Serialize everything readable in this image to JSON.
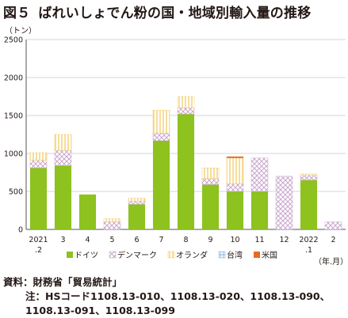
{
  "title": {
    "figure_number": "図５",
    "text": "ばれいしょでん粉の国・地域別輸入量の推移"
  },
  "source": "資料：財務省「貿易統計」",
  "note": {
    "label": "注：",
    "text": "HSコード1108.13-010、1108.13-020、1108.13-090、1108.13-091、1108.13-099"
  },
  "colors": {
    "germany": "#8dc21f",
    "denmark": "#c9a6cc",
    "netherlands": "#f0c75a",
    "taiwan": "#8ab4d8",
    "usa": "#e86b22"
  },
  "chart_data": {
    "type": "bar",
    "stacked": true,
    "y_unit_label": "（トン）",
    "x_unit_label": "（年.月）",
    "ylim": [
      0,
      2500
    ],
    "yticks": [
      "0",
      "500",
      "1000",
      "1500",
      "2000",
      "2500"
    ],
    "grid": true,
    "legend_position": "bottom",
    "categories": [
      "2021\n.2",
      "3",
      "4",
      "5",
      "6",
      "7",
      "8",
      "9",
      "10",
      "11",
      "12",
      "2022\n.1",
      "2"
    ],
    "series": [
      {
        "name": "ドイツ",
        "key": "germany",
        "pattern": "solid",
        "values": [
          810,
          840,
          460,
          0,
          330,
          1170,
          1520,
          590,
          500,
          500,
          0,
          650,
          0
        ]
      },
      {
        "name": "デンマーク",
        "key": "denmark",
        "pattern": "cross",
        "values": [
          100,
          200,
          0,
          100,
          40,
          100,
          80,
          80,
          100,
          440,
          700,
          60,
          100
        ]
      },
      {
        "name": "オランダ",
        "key": "netherlands",
        "pattern": "vertical",
        "values": [
          100,
          210,
          0,
          40,
          40,
          300,
          150,
          140,
          340,
          0,
          0,
          20,
          0
        ]
      },
      {
        "name": "台湾",
        "key": "taiwan",
        "pattern": "grid",
        "values": [
          0,
          0,
          0,
          0,
          0,
          0,
          0,
          0,
          0,
          0,
          0,
          0,
          0
        ]
      },
      {
        "name": "米国",
        "key": "usa",
        "pattern": "solid",
        "values": [
          0,
          0,
          0,
          0,
          0,
          0,
          0,
          0,
          20,
          0,
          0,
          0,
          0
        ]
      }
    ]
  }
}
